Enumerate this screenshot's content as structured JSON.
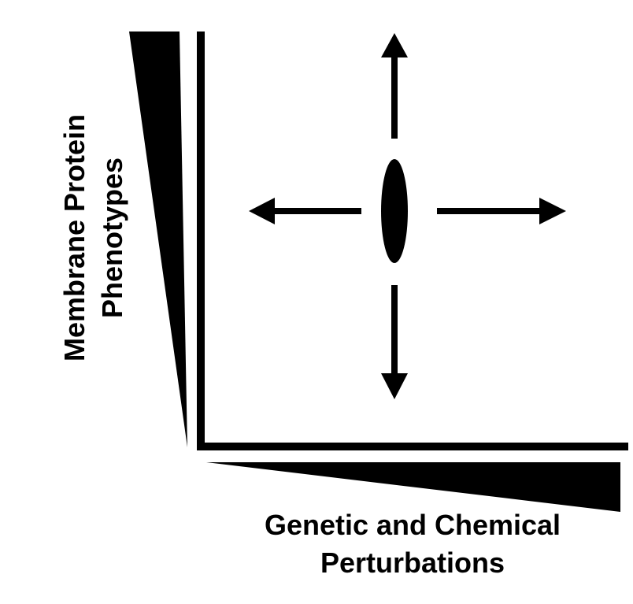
{
  "diagram": {
    "y_axis_label_line1": "Membrane Protein",
    "y_axis_label_line2": "Phenotypes",
    "x_axis_label_line1": "Genetic and Chemical",
    "x_axis_label_line2": "Perturbations"
  },
  "colors": {
    "ink": "#000000",
    "background": "#ffffff"
  },
  "icons": {
    "center": "ellipse-cell",
    "arrows": [
      "arrow-up",
      "arrow-down",
      "arrow-left",
      "arrow-right"
    ]
  }
}
